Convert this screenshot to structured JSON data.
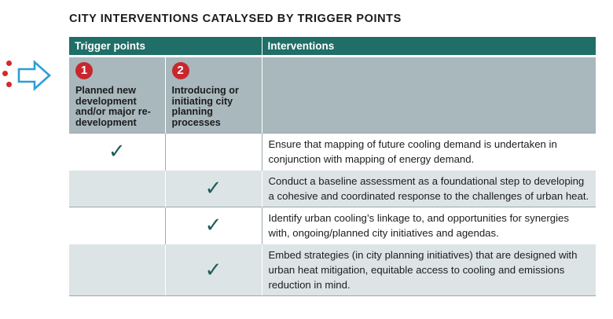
{
  "title": "CITY INTERVENTIONS CATALYSED BY TRIGGER POINTS",
  "headers": {
    "trigger": "Trigger points",
    "interventions": "Interventions"
  },
  "triggers": [
    {
      "number": "1",
      "label": "Planned new development and/or major re-development"
    },
    {
      "number": "2",
      "label": "Introducing or initiating city planning processes"
    }
  ],
  "check_symbol": "✓",
  "rows": [
    {
      "trigger1": true,
      "trigger2": false,
      "text": "Ensure that mapping of future cooling demand is undertaken in conjunction with mapping of energy demand."
    },
    {
      "trigger1": false,
      "trigger2": true,
      "text": "Conduct a baseline assessment as a foundational step to developing a cohesive and coordinated response to the challenges of urban heat."
    },
    {
      "trigger1": false,
      "trigger2": true,
      "text": "Identify urban cooling’s linkage to, and opportunities for synergies with, ongoing/planned city initiatives and agendas."
    },
    {
      "trigger1": false,
      "trigger2": true,
      "text": "Embed strategies (in city planning initiatives) that are designed with urban heat mitigation, equitable access to cooling and emissions reduction in mind."
    }
  ],
  "colors": {
    "header": "#1f6e67",
    "badge": "#c8272d",
    "arrow": "#2a9fd6",
    "check": "#1f5e5a"
  },
  "icons": {
    "arrow": "right-arrow-icon",
    "dots": "dots-icon",
    "check": "check-icon"
  }
}
